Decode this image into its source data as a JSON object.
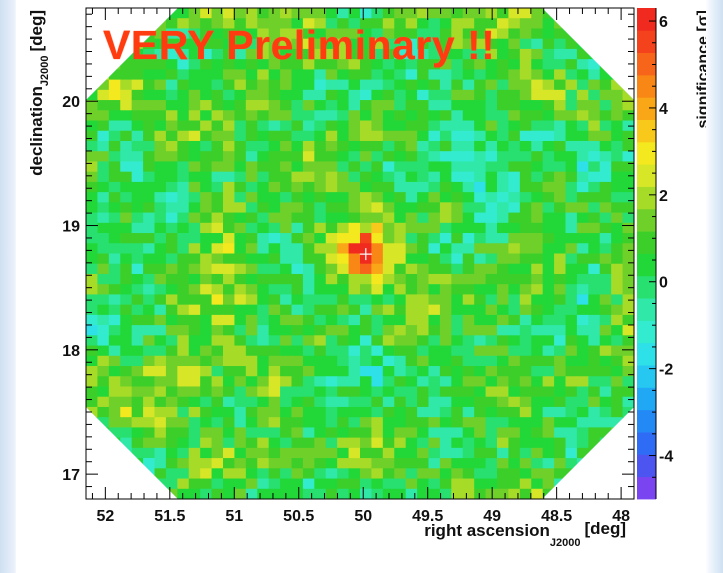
{
  "watermark": "VERY Preliminary !!",
  "chart_data": {
    "type": "heatmap",
    "title": "",
    "xlabel": "right ascension",
    "xlabel_subscript": "J2000",
    "xlabel_unit": "[deg]",
    "ylabel": "declination",
    "ylabel_subscript": "J2000",
    "ylabel_unit": "[deg]",
    "colorbar_label": "significance [σ]",
    "x_range": [
      52.15,
      47.9
    ],
    "y_range": [
      16.8,
      20.75
    ],
    "x_ticks": [
      52,
      51.5,
      51,
      50.5,
      50,
      49.5,
      49,
      48.5,
      48
    ],
    "x_tick_labels": [
      "52",
      "51.5",
      "51",
      "50.5",
      "50",
      "49.5",
      "49",
      "48.5",
      "48"
    ],
    "y_ticks": [
      17,
      18,
      19,
      20
    ],
    "y_tick_labels": [
      "17",
      "18",
      "19",
      "20"
    ],
    "z_range": [
      -5,
      6.3
    ],
    "z_ticks": [
      -4,
      -2,
      0,
      2,
      4,
      6
    ],
    "z_tick_labels": [
      "-4",
      "-2",
      "0",
      "2",
      "4",
      "6"
    ],
    "colorbar_colors": [
      "#7a45f0",
      "#4d55f0",
      "#2f6cf5",
      "#2389f5",
      "#21a8f5",
      "#26c8f2",
      "#2ee0e8",
      "#33ecd0",
      "#30e8a8",
      "#28e070",
      "#22d838",
      "#3ccf2a",
      "#6fd02a",
      "#a6dc28",
      "#d7e626",
      "#f4e81f",
      "#f8c91a",
      "#f9a617",
      "#f88716",
      "#f7651a",
      "#f4421c",
      "#f02a1e"
    ],
    "hotspot": {
      "ra": 49.98,
      "dec": 18.77,
      "peak_sigma": 6
    },
    "grid": false
  }
}
